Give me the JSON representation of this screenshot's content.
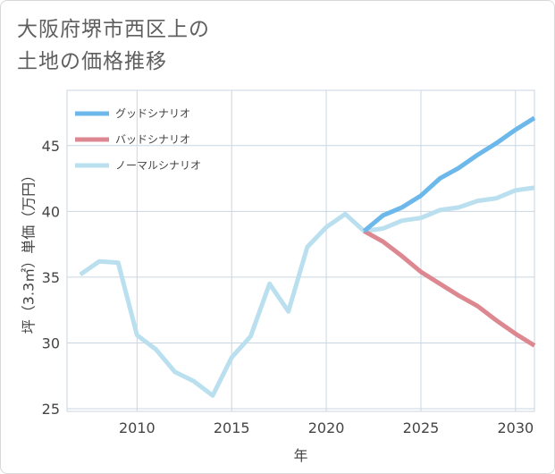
{
  "title": "大阪府堺市西区上の\n土地の価格推移",
  "chart_data": {
    "type": "line",
    "xlabel": "年",
    "ylabel": "坪（3.3㎡）単価（万円）",
    "xlim": [
      2006.3,
      2031
    ],
    "ylim": [
      24.8,
      49.2
    ],
    "xticks": [
      2010,
      2015,
      2020,
      2025,
      2030
    ],
    "yticks": [
      25,
      30,
      35,
      40,
      45
    ],
    "grid": true,
    "legend_position": "top-left",
    "series": [
      {
        "name": "グッドシナリオ",
        "color": "#6cb8ea",
        "x": [
          2022,
          2023,
          2024,
          2025,
          2026,
          2027,
          2028,
          2029,
          2030,
          2031
        ],
        "y": [
          38.5,
          39.7,
          40.3,
          41.2,
          42.5,
          43.3,
          44.3,
          45.2,
          46.2,
          47.1
        ]
      },
      {
        "name": "バッドシナリオ",
        "color": "#dd8891",
        "x": [
          2022,
          2023,
          2024,
          2025,
          2026,
          2027,
          2028,
          2029,
          2030,
          2031
        ],
        "y": [
          38.5,
          37.7,
          36.6,
          35.4,
          34.5,
          33.6,
          32.8,
          31.7,
          30.7,
          29.8
        ]
      },
      {
        "name": "ノーマルシナリオ",
        "color": "#badfee",
        "x": [
          2007,
          2008,
          2009,
          2010,
          2011,
          2012,
          2013,
          2014,
          2015,
          2016,
          2017,
          2018,
          2019,
          2020,
          2021,
          2022,
          2023,
          2024,
          2025,
          2026,
          2027,
          2028,
          2029,
          2030,
          2031
        ],
        "y": [
          35.2,
          36.2,
          36.1,
          30.6,
          29.5,
          27.8,
          27.1,
          26.0,
          28.9,
          30.5,
          34.5,
          32.4,
          37.3,
          38.8,
          39.8,
          38.5,
          38.7,
          39.3,
          39.5,
          40.1,
          40.3,
          40.8,
          41.0,
          41.6,
          41.8
        ]
      }
    ]
  }
}
